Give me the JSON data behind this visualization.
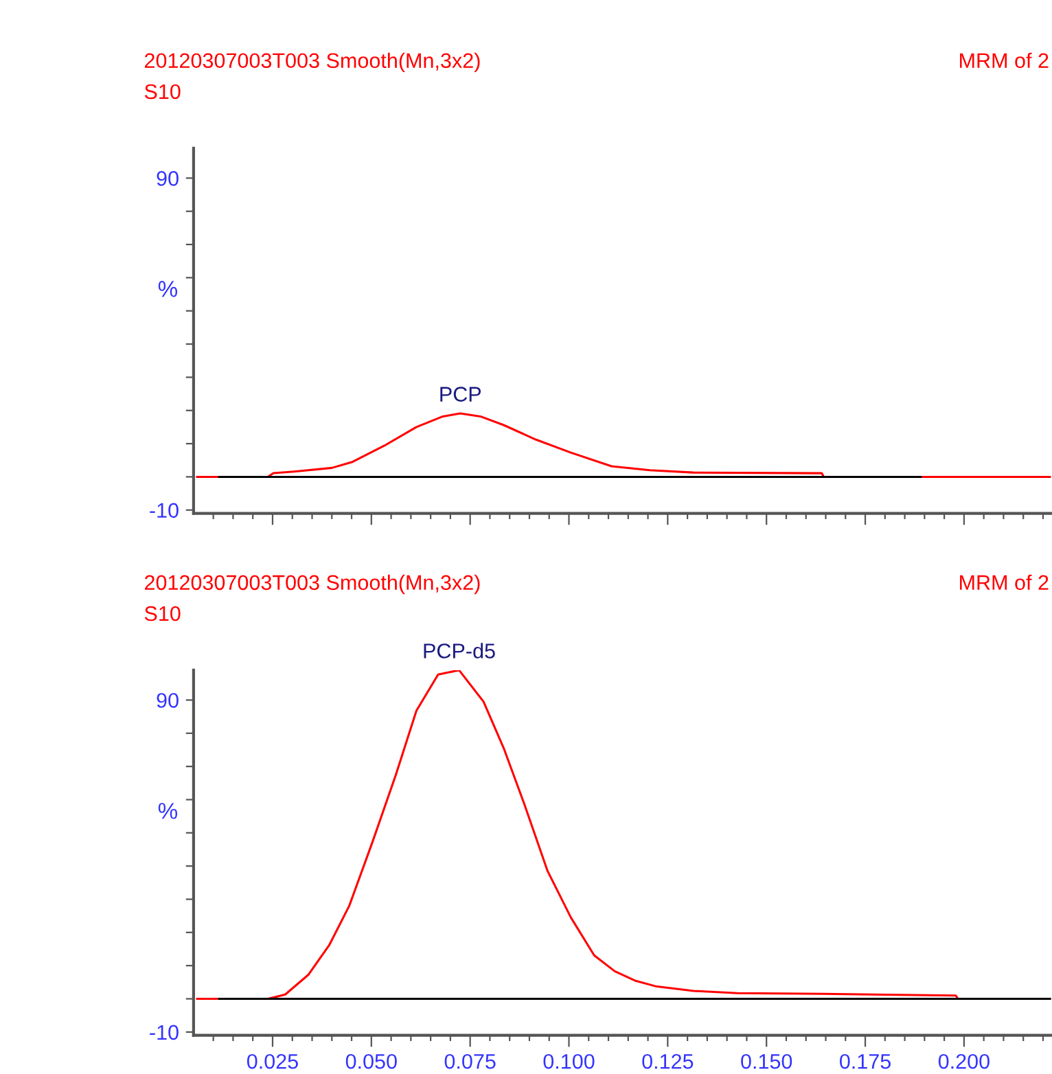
{
  "chart_data": [
    {
      "type": "line",
      "title": "20120307003T003 Smooth(Mn,3x2)",
      "subtitle": "S10",
      "ylabel": "%",
      "annotations": [
        "MRM of 2",
        {
          "text": "PCP",
          "x": 0.0725,
          "y": 19.1
        }
      ],
      "xlim": [
        0.005,
        0.222
      ],
      "ylim": [
        -11,
        99
      ],
      "xticks": [
        {
          "value": 0.01,
          "label": null
        },
        {
          "value": 0.015,
          "label": null
        },
        {
          "value": 0.02,
          "label": null
        },
        {
          "value": 0.025,
          "label": null
        },
        {
          "value": 0.03,
          "label": null
        },
        {
          "value": 0.035,
          "label": null
        },
        {
          "value": 0.04,
          "label": null
        },
        {
          "value": 0.045,
          "label": null
        },
        {
          "value": 0.05,
          "label": null
        },
        {
          "value": 0.055,
          "label": null
        },
        {
          "value": 0.06,
          "label": null
        },
        {
          "value": 0.065,
          "label": null
        },
        {
          "value": 0.07,
          "label": null
        },
        {
          "value": 0.075,
          "label": null
        },
        {
          "value": 0.08,
          "label": null
        },
        {
          "value": 0.085,
          "label": null
        },
        {
          "value": 0.09,
          "label": null
        },
        {
          "value": 0.095,
          "label": null
        },
        {
          "value": 0.1,
          "label": null
        },
        {
          "value": 0.105,
          "label": null
        },
        {
          "value": 0.11,
          "label": null
        },
        {
          "value": 0.115,
          "label": null
        },
        {
          "value": 0.12,
          "label": null
        },
        {
          "value": 0.125,
          "label": null
        },
        {
          "value": 0.13,
          "label": null
        },
        {
          "value": 0.135,
          "label": null
        },
        {
          "value": 0.14,
          "label": null
        },
        {
          "value": 0.145,
          "label": null
        },
        {
          "value": 0.15,
          "label": null
        },
        {
          "value": 0.155,
          "label": null
        },
        {
          "value": 0.16,
          "label": null
        },
        {
          "value": 0.165,
          "label": null
        },
        {
          "value": 0.17,
          "label": null
        },
        {
          "value": 0.175,
          "label": null
        },
        {
          "value": 0.18,
          "label": null
        },
        {
          "value": 0.185,
          "label": null
        },
        {
          "value": 0.19,
          "label": null
        },
        {
          "value": 0.195,
          "label": null
        },
        {
          "value": 0.2,
          "label": null
        },
        {
          "value": 0.205,
          "label": null
        },
        {
          "value": 0.21,
          "label": null
        },
        {
          "value": 0.215,
          "label": null
        },
        {
          "value": 0.22,
          "label": null
        }
      ],
      "yticks": [
        {
          "value": -10,
          "label": "-10"
        },
        {
          "value": 0,
          "label": null
        },
        {
          "value": 10,
          "label": null
        },
        {
          "value": 20,
          "label": null
        },
        {
          "value": 30,
          "label": null
        },
        {
          "value": 40,
          "label": null
        },
        {
          "value": 50,
          "label": null
        },
        {
          "value": 60,
          "label": null
        },
        {
          "value": 70,
          "label": null
        },
        {
          "value": 80,
          "label": null
        },
        {
          "value": 90,
          "label": "90"
        }
      ],
      "tick_labels": "y",
      "grid": false,
      "marker": "none",
      "line_style": "solid",
      "series": [
        {
          "color": "#ff0000",
          "x": [
            0.0059,
            0.0238,
            0.0252,
            0.0304,
            0.04,
            0.0452,
            0.0533,
            0.0614,
            0.0681,
            0.0725,
            0.0776,
            0.0835,
            0.0917,
            0.1005,
            0.1108,
            0.1205,
            0.1315,
            0.164,
            0.1645,
            0.222
          ],
          "values": [
            0,
            0,
            1.1,
            1.6,
            2.7,
            4.5,
            9.4,
            15.0,
            18.2,
            19.1,
            18.2,
            15.6,
            11.2,
            7.3,
            3.2,
            2.0,
            1.3,
            1.1,
            0,
            0
          ]
        },
        {
          "color": "#000000",
          "x": [
            0.0115,
            0.189
          ],
          "values": [
            0,
            0
          ]
        }
      ]
    },
    {
      "type": "line",
      "title": "20120307003T003 Smooth(Mn,3x2)",
      "subtitle": "S10",
      "ylabel": "%",
      "annotations": [
        "MRM of 2",
        {
          "text": "PCP-d5",
          "x": 0.0722,
          "y": 99
        }
      ],
      "xlim": [
        0.005,
        0.222
      ],
      "ylim": [
        -11,
        99
      ],
      "xticks": [
        {
          "value": 0.01,
          "label": null
        },
        {
          "value": 0.015,
          "label": null
        },
        {
          "value": 0.02,
          "label": null
        },
        {
          "value": 0.025,
          "label": "0.025"
        },
        {
          "value": 0.03,
          "label": null
        },
        {
          "value": 0.035,
          "label": null
        },
        {
          "value": 0.04,
          "label": null
        },
        {
          "value": 0.045,
          "label": null
        },
        {
          "value": 0.05,
          "label": "0.050"
        },
        {
          "value": 0.055,
          "label": null
        },
        {
          "value": 0.06,
          "label": null
        },
        {
          "value": 0.065,
          "label": null
        },
        {
          "value": 0.07,
          "label": null
        },
        {
          "value": 0.075,
          "label": "0.075"
        },
        {
          "value": 0.08,
          "label": null
        },
        {
          "value": 0.085,
          "label": null
        },
        {
          "value": 0.09,
          "label": null
        },
        {
          "value": 0.095,
          "label": null
        },
        {
          "value": 0.1,
          "label": "0.100"
        },
        {
          "value": 0.105,
          "label": null
        },
        {
          "value": 0.11,
          "label": null
        },
        {
          "value": 0.115,
          "label": null
        },
        {
          "value": 0.12,
          "label": null
        },
        {
          "value": 0.125,
          "label": "0.125"
        },
        {
          "value": 0.13,
          "label": null
        },
        {
          "value": 0.135,
          "label": null
        },
        {
          "value": 0.14,
          "label": null
        },
        {
          "value": 0.145,
          "label": null
        },
        {
          "value": 0.15,
          "label": "0.150"
        },
        {
          "value": 0.155,
          "label": null
        },
        {
          "value": 0.16,
          "label": null
        },
        {
          "value": 0.165,
          "label": null
        },
        {
          "value": 0.17,
          "label": null
        },
        {
          "value": 0.175,
          "label": "0.175"
        },
        {
          "value": 0.18,
          "label": null
        },
        {
          "value": 0.185,
          "label": null
        },
        {
          "value": 0.19,
          "label": null
        },
        {
          "value": 0.195,
          "label": null
        },
        {
          "value": 0.2,
          "label": "0.200"
        },
        {
          "value": 0.205,
          "label": null
        },
        {
          "value": 0.21,
          "label": null
        },
        {
          "value": 0.215,
          "label": null
        },
        {
          "value": 0.22,
          "label": null
        }
      ],
      "yticks": [
        {
          "value": -10,
          "label": "-10"
        },
        {
          "value": 0,
          "label": null
        },
        {
          "value": 10,
          "label": null
        },
        {
          "value": 20,
          "label": null
        },
        {
          "value": 30,
          "label": null
        },
        {
          "value": 40,
          "label": null
        },
        {
          "value": 50,
          "label": null
        },
        {
          "value": 60,
          "label": null
        },
        {
          "value": 70,
          "label": null
        },
        {
          "value": 80,
          "label": null
        },
        {
          "value": 90,
          "label": "90"
        }
      ],
      "grid": false,
      "marker": "none",
      "line_style": "solid",
      "series": [
        {
          "color": "#ff0000",
          "x": [
            0.0059,
            0.0238,
            0.0282,
            0.0341,
            0.0393,
            0.0444,
            0.0503,
            0.0562,
            0.0614,
            0.0669,
            0.0722,
            0.0784,
            0.0835,
            0.0887,
            0.0946,
            0.1005,
            0.1064,
            0.1116,
            0.1167,
            0.1219,
            0.1315,
            0.1426,
            0.164,
            0.1979,
            0.1985,
            0.222
          ],
          "values": [
            0,
            0,
            1.3,
            7.3,
            16.1,
            28,
            47.3,
            67.5,
            86.8,
            97.7,
            99,
            89.5,
            75.5,
            58.7,
            38.5,
            24.5,
            13.1,
            8.3,
            5.5,
            3.8,
            2.4,
            1.7,
            1.5,
            1.0,
            0,
            0
          ]
        },
        {
          "color": "#000000",
          "x": [
            0.0115,
            0.222
          ],
          "values": [
            0,
            0
          ]
        }
      ]
    }
  ]
}
